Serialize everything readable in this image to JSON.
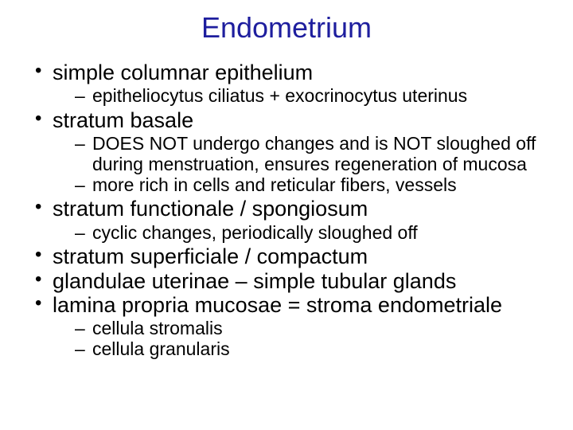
{
  "title": "Endometrium",
  "title_color": "#1e1e9e",
  "background_color": "#ffffff",
  "text_color": "#000000",
  "title_fontsize": 36,
  "level1_fontsize": 27,
  "level2_fontsize": 23,
  "bullets": [
    {
      "text": "simple columnar epithelium",
      "sub": [
        "epitheliocytus ciliatus + exocrinocytus uterinus"
      ]
    },
    {
      "text": "stratum basale",
      "sub": [
        "DOES NOT undergo changes and is NOT sloughed off during menstruation, ensures regeneration of mucosa",
        "more rich in cells and reticular fibers, vessels"
      ]
    },
    {
      "text": "stratum functionale / spongiosum",
      "sub": [
        "cyclic changes, periodically sloughed off"
      ]
    },
    {
      "text": "stratum superficiale / compactum",
      "sub": []
    },
    {
      "text": "glandulae uterinae – simple tubular glands",
      "sub": []
    },
    {
      "text": "lamina propria mucosae = stroma endometriale",
      "sub": [
        "cellula stromalis",
        "cellula granularis"
      ]
    }
  ]
}
